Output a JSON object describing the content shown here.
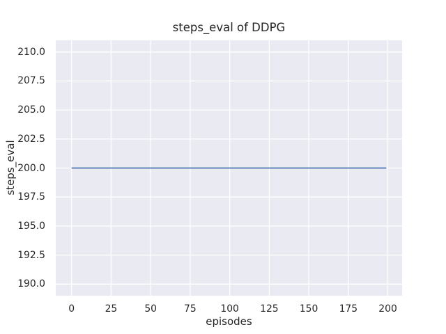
{
  "figure": {
    "background": "#ffffff"
  },
  "chart_data": {
    "type": "line",
    "title": "steps_eval of DDPG",
    "xlabel": "episodes",
    "ylabel": "steps_eval",
    "x_ticks": [
      0,
      25,
      50,
      75,
      100,
      125,
      150,
      175,
      200
    ],
    "x_tick_labels": [
      "0",
      "25",
      "50",
      "75",
      "100",
      "125",
      "150",
      "175",
      "200"
    ],
    "y_ticks": [
      210.0,
      207.5,
      205.0,
      202.5,
      200.0,
      197.5,
      195.0,
      192.5,
      190.0
    ],
    "y_tick_labels": [
      "210.0",
      "207.5",
      "205.0",
      "202.5",
      "200.0",
      "197.5",
      "195.0",
      "192.5",
      "190.0"
    ],
    "xlim": [
      -10,
      209
    ],
    "ylim": [
      189,
      211
    ],
    "grid": true,
    "legend": false,
    "style": "seaborn-darkgrid",
    "plot_background": "#eaeaf2",
    "grid_color": "#ffffff",
    "text_color": "#262626",
    "series": [
      {
        "name": "steps_eval of DDPG",
        "x": [
          0,
          199
        ],
        "y": [
          200,
          200
        ],
        "constant_value": 200,
        "color": "#4c72b0",
        "linewidth": 1.8
      }
    ]
  }
}
